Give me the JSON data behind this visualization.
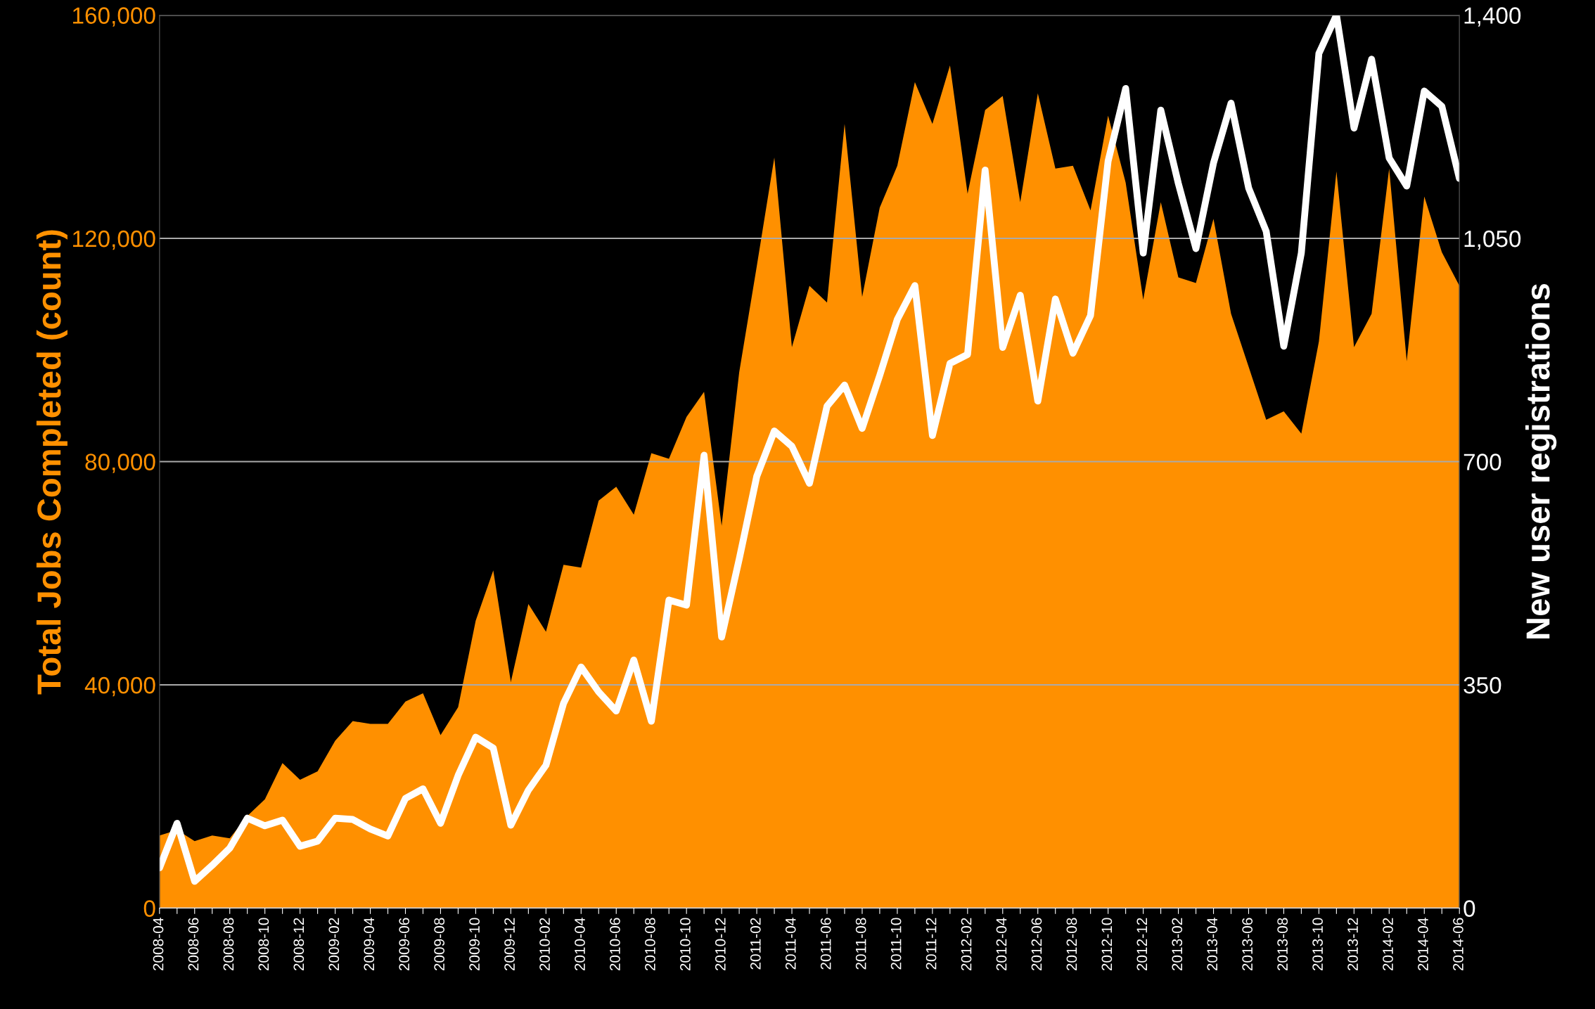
{
  "chart_data": {
    "type": "area",
    "ylabel": "Total Jobs Completed (count)",
    "y2label": "New user registrations",
    "categories": [
      "2008-04",
      null,
      "2008-06",
      null,
      "2008-08",
      null,
      "2008-10",
      null,
      "2008-12",
      null,
      "2009-02",
      null,
      "2009-04",
      null,
      "2009-06",
      null,
      "2009-08",
      null,
      "2009-10",
      null,
      "2009-12",
      null,
      "2010-02",
      null,
      "2010-04",
      null,
      "2010-06",
      null,
      "2010-08",
      null,
      "2010-10",
      null,
      "2010-12",
      null,
      "2011-02",
      null,
      "2011-04",
      null,
      "2011-06",
      null,
      "2011-08",
      null,
      "2011-10",
      null,
      "2011-12",
      null,
      "2012-02",
      null,
      "2012-04",
      null,
      "2012-06",
      null,
      "2012-08",
      null,
      "2012-10",
      null,
      "2012-12",
      null,
      "2013-02",
      null,
      "2013-04",
      null,
      "2013-06",
      null,
      "2013-08",
      null,
      "2013-10",
      null,
      "2013-12",
      null,
      "2014-02",
      null,
      "2014-04",
      null,
      "2014-06"
    ],
    "series": [
      {
        "color": "#ff9000",
        "values": [
          13000,
          14000,
          12000,
          13000,
          12500,
          16500,
          19500,
          26000,
          23000,
          24500,
          30000,
          33500,
          33000,
          33000,
          37000,
          38500,
          31000,
          36000,
          51500,
          60500,
          40500,
          54500,
          49500,
          61500,
          61000,
          73000,
          75500,
          70500,
          81500,
          80500,
          88000,
          92500,
          68500,
          96000,
          115000,
          134500,
          100500,
          111500,
          108500,
          140500,
          109500,
          125500,
          133000,
          148000,
          140500,
          151000,
          128000,
          143000,
          145500,
          126500,
          146000,
          132500,
          133000,
          125000,
          142000,
          130000,
          109000,
          126500,
          113000,
          112000,
          123500,
          106500,
          97000,
          87500,
          89000,
          85000,
          101500,
          132000,
          100500,
          106500,
          132500,
          98000,
          127500,
          117500,
          111500
        ]
      },
      {
        "type": "line",
        "axis": "y2",
        "color": "#ffffff",
        "values": [
          63,
          133,
          42,
          67,
          94,
          141,
          129,
          138,
          97,
          105,
          141,
          139,
          124,
          113,
          172,
          187,
          133,
          208,
          268,
          251,
          130,
          185,
          224,
          321,
          378,
          339,
          309,
          389,
          293,
          483,
          475,
          710,
          425,
          547,
          677,
          748,
          724,
          666,
          787,
          820,
          752,
          835,
          923,
          976,
          741,
          854,
          868,
          1157,
          879,
          961,
          795,
          955,
          870,
          929,
          1171,
          1285,
          1027,
          1251,
          1136,
          1034,
          1168,
          1262,
          1129,
          1061,
          881,
          1027,
          1340,
          1400,
          1223,
          1331,
          1176,
          1132,
          1281,
          1257,
          1144
        ]
      }
    ],
    "ylim": [
      0,
      160000
    ],
    "yticks": [
      {
        "value": 0,
        "label": "0"
      },
      {
        "value": 40000,
        "label": "40,000"
      },
      {
        "value": 80000,
        "label": "80,000"
      },
      {
        "value": 120000,
        "label": "120,000"
      },
      {
        "value": 160000,
        "label": "160,000"
      }
    ],
    "y2lim": [
      0,
      1400
    ],
    "y2ticks": [
      {
        "value": 0,
        "label": "0"
      },
      {
        "value": 350,
        "label": "350"
      },
      {
        "value": 700,
        "label": "700"
      },
      {
        "value": 1050,
        "label": "1,050"
      },
      {
        "value": 1400,
        "label": "1,400"
      }
    ],
    "grid": "y"
  }
}
